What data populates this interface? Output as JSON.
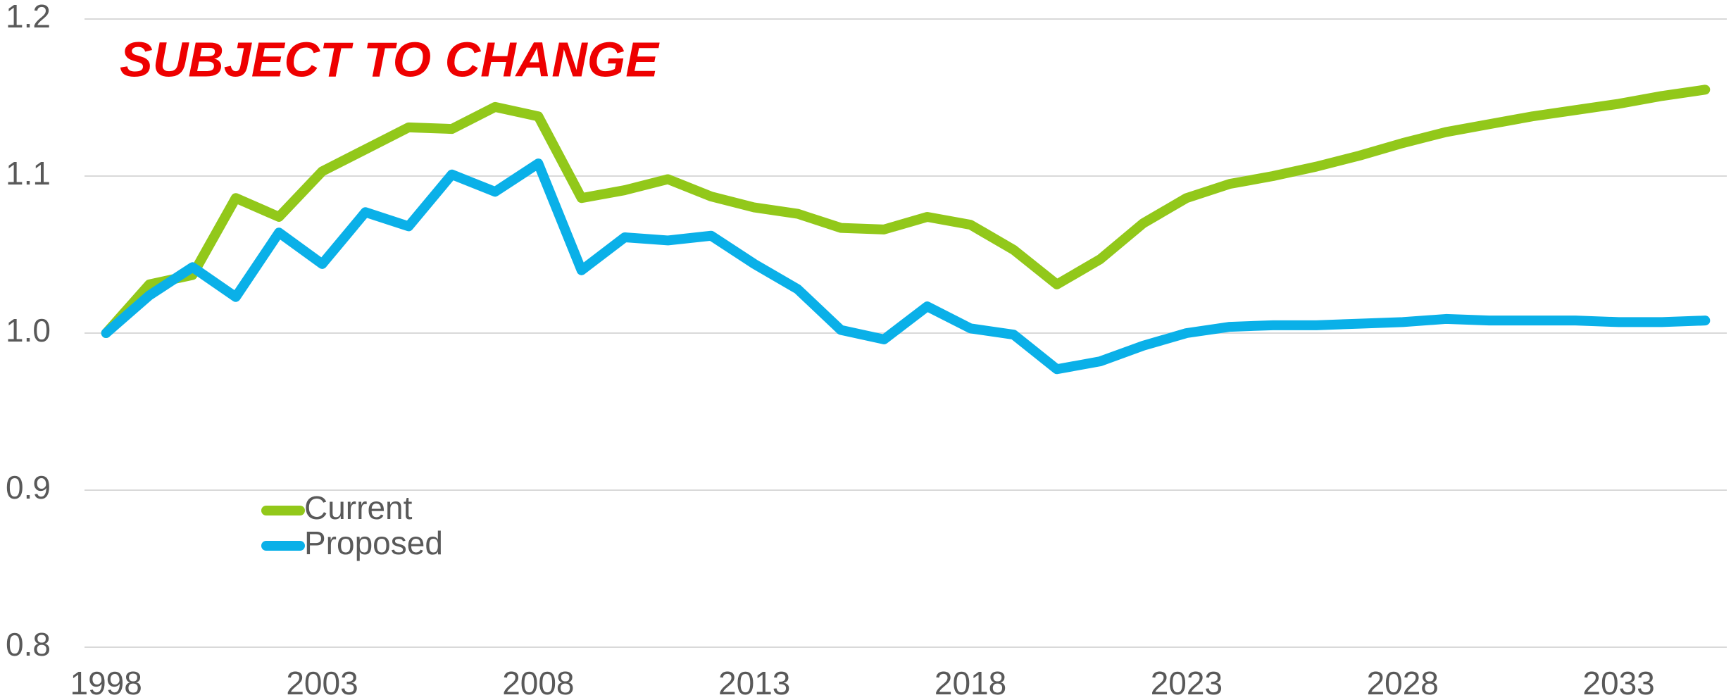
{
  "chart_data": {
    "type": "line",
    "annotation": "SUBJECT TO CHANGE",
    "x": [
      1998,
      1999,
      2000,
      2001,
      2002,
      2003,
      2004,
      2005,
      2006,
      2007,
      2008,
      2009,
      2010,
      2011,
      2012,
      2013,
      2014,
      2015,
      2016,
      2017,
      2018,
      2019,
      2020,
      2021,
      2022,
      2023,
      2024,
      2025,
      2026,
      2027,
      2028,
      2029,
      2030,
      2031,
      2032,
      2033,
      2034,
      2035
    ],
    "series": [
      {
        "name": "Current",
        "color": "#92c81a",
        "values": [
          1.0,
          1.031,
          1.037,
          1.086,
          1.074,
          1.103,
          1.117,
          1.131,
          1.13,
          1.144,
          1.138,
          1.086,
          1.091,
          1.098,
          1.087,
          1.08,
          1.076,
          1.067,
          1.066,
          1.074,
          1.069,
          1.053,
          1.031,
          1.047,
          1.07,
          1.086,
          1.095,
          1.1,
          1.106,
          1.113,
          1.121,
          1.128,
          1.133,
          1.138,
          1.142,
          1.146,
          1.151,
          1.155
        ]
      },
      {
        "name": "Proposed",
        "color": "#0ab0e8",
        "values": [
          1.0,
          1.024,
          1.042,
          1.023,
          1.064,
          1.044,
          1.077,
          1.068,
          1.101,
          1.09,
          1.108,
          1.04,
          1.061,
          1.059,
          1.062,
          1.044,
          1.028,
          1.002,
          0.996,
          1.017,
          1.003,
          0.999,
          0.977,
          0.982,
          0.992,
          1.0,
          1.004,
          1.005,
          1.005,
          1.006,
          1.007,
          1.009,
          1.008,
          1.008,
          1.008,
          1.007,
          1.007,
          1.008
        ]
      }
    ],
    "xlim": [
      1997.5,
      2035.5
    ],
    "xticks": [
      1998,
      2003,
      2008,
      2013,
      2018,
      2023,
      2028,
      2033
    ],
    "ylim": [
      0.8,
      1.2
    ],
    "yticks": [
      0.8,
      0.9,
      {
        "value": 1,
        "label": "1.0"
      },
      1.1,
      1.2
    ],
    "grid": true
  }
}
